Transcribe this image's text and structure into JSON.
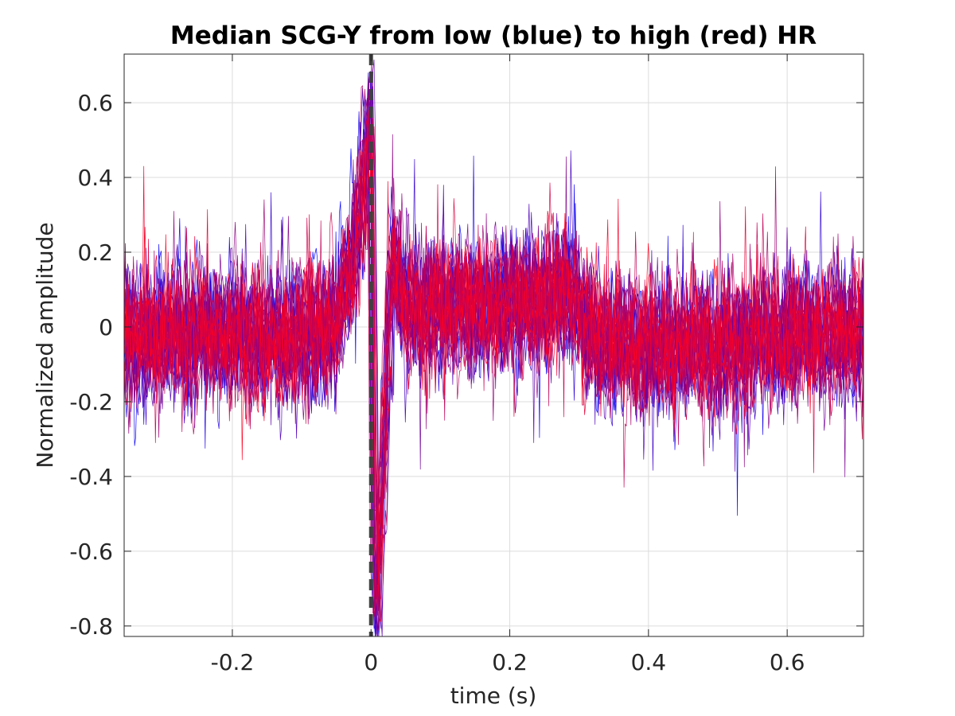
{
  "chart_data": {
    "type": "line",
    "title": "Median SCG-Y from low (blue) to high (red) HR",
    "xlabel": "time (s)",
    "ylabel": "Normalized amplitude",
    "xlim": [
      -0.356,
      0.71
    ],
    "ylim": [
      -0.828,
      0.73
    ],
    "xticks": [
      -0.2,
      0,
      0.2,
      0.4,
      0.6
    ],
    "xtick_labels": [
      "-0.2",
      "0",
      "0.2",
      "0.4",
      "0.6"
    ],
    "yticks": [
      -0.8,
      -0.6,
      -0.4,
      -0.2,
      0,
      0.2,
      0.4,
      0.6
    ],
    "ytick_labels": [
      "-0.8",
      "-0.6",
      "-0.4",
      "-0.2",
      "0",
      "0.2",
      "0.4",
      "0.6"
    ],
    "grid": true,
    "box": true,
    "n_traces": 30,
    "color_gradient": {
      "low_hr": "#0000ff",
      "high_hr": "#ff0020"
    },
    "reference_line": {
      "x": 0,
      "style": "dashed",
      "color": "#404040"
    },
    "envelope": {
      "description": "median template shared by all traces (noise added per trace)",
      "x": [
        -0.356,
        -0.3,
        -0.2,
        -0.1,
        -0.05,
        -0.02,
        -0.01,
        0.0,
        0.005,
        0.01,
        0.02,
        0.03,
        0.05,
        0.1,
        0.2,
        0.28,
        0.3,
        0.33,
        0.4,
        0.5,
        0.6,
        0.71
      ],
      "y": [
        -0.02,
        -0.03,
        -0.02,
        -0.03,
        0.0,
        0.25,
        0.4,
        0.55,
        -0.55,
        -0.7,
        -0.3,
        0.2,
        0.05,
        0.05,
        0.06,
        0.1,
        0.05,
        -0.05,
        -0.05,
        -0.04,
        -0.03,
        -0.02
      ]
    },
    "noise_sd": 0.085
  }
}
